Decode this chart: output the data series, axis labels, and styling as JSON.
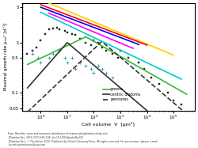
{
  "title": "",
  "xlabel": "Cell volume  V  [μm³]",
  "ylabel": "Maximal growth rate μₘₐˣ [d⁻¹]",
  "xlim_log": [
    -1,
    6
  ],
  "ylim_log": [
    -1.3,
    0.7
  ],
  "background_color": "#ffffff",
  "footnote_lines": [
    "From: Benefits, costs and taxonomic distribution of marine phytoplankton body size",
    "J Plankton Res. 2015;37(3):494-508. doi:10.1093/plankt/fbv011",
    "J Plankton Res | © The Author 2015. Published by Oxford University Press. All rights reserved. For permissions, please e-mail:",
    "journals.permissions@oup.com"
  ],
  "scatter_squares": {
    "color": "#222222",
    "marker": "s",
    "size": 3
  },
  "scatter_crosses": {
    "color": "#2299aa",
    "marker": "+",
    "size": 3
  },
  "legend": {
    "greens_label": "greens",
    "centric_label": "centric diatoms",
    "pennates_label": "pennates"
  },
  "curves": {
    "greens_color": "#33bb33",
    "centric_color": "#333333",
    "pennates_style": "dashed",
    "pennates_color": "#333333",
    "lines": [
      {
        "color": "#ffcc00",
        "lw": 1.5
      },
      {
        "color": "#ff0000",
        "lw": 1.5
      },
      {
        "color": "#0000ff",
        "lw": 1.5
      },
      {
        "color": "#ff00ff",
        "lw": 1.5
      },
      {
        "color": "#00cccc",
        "lw": 1.5
      }
    ]
  }
}
